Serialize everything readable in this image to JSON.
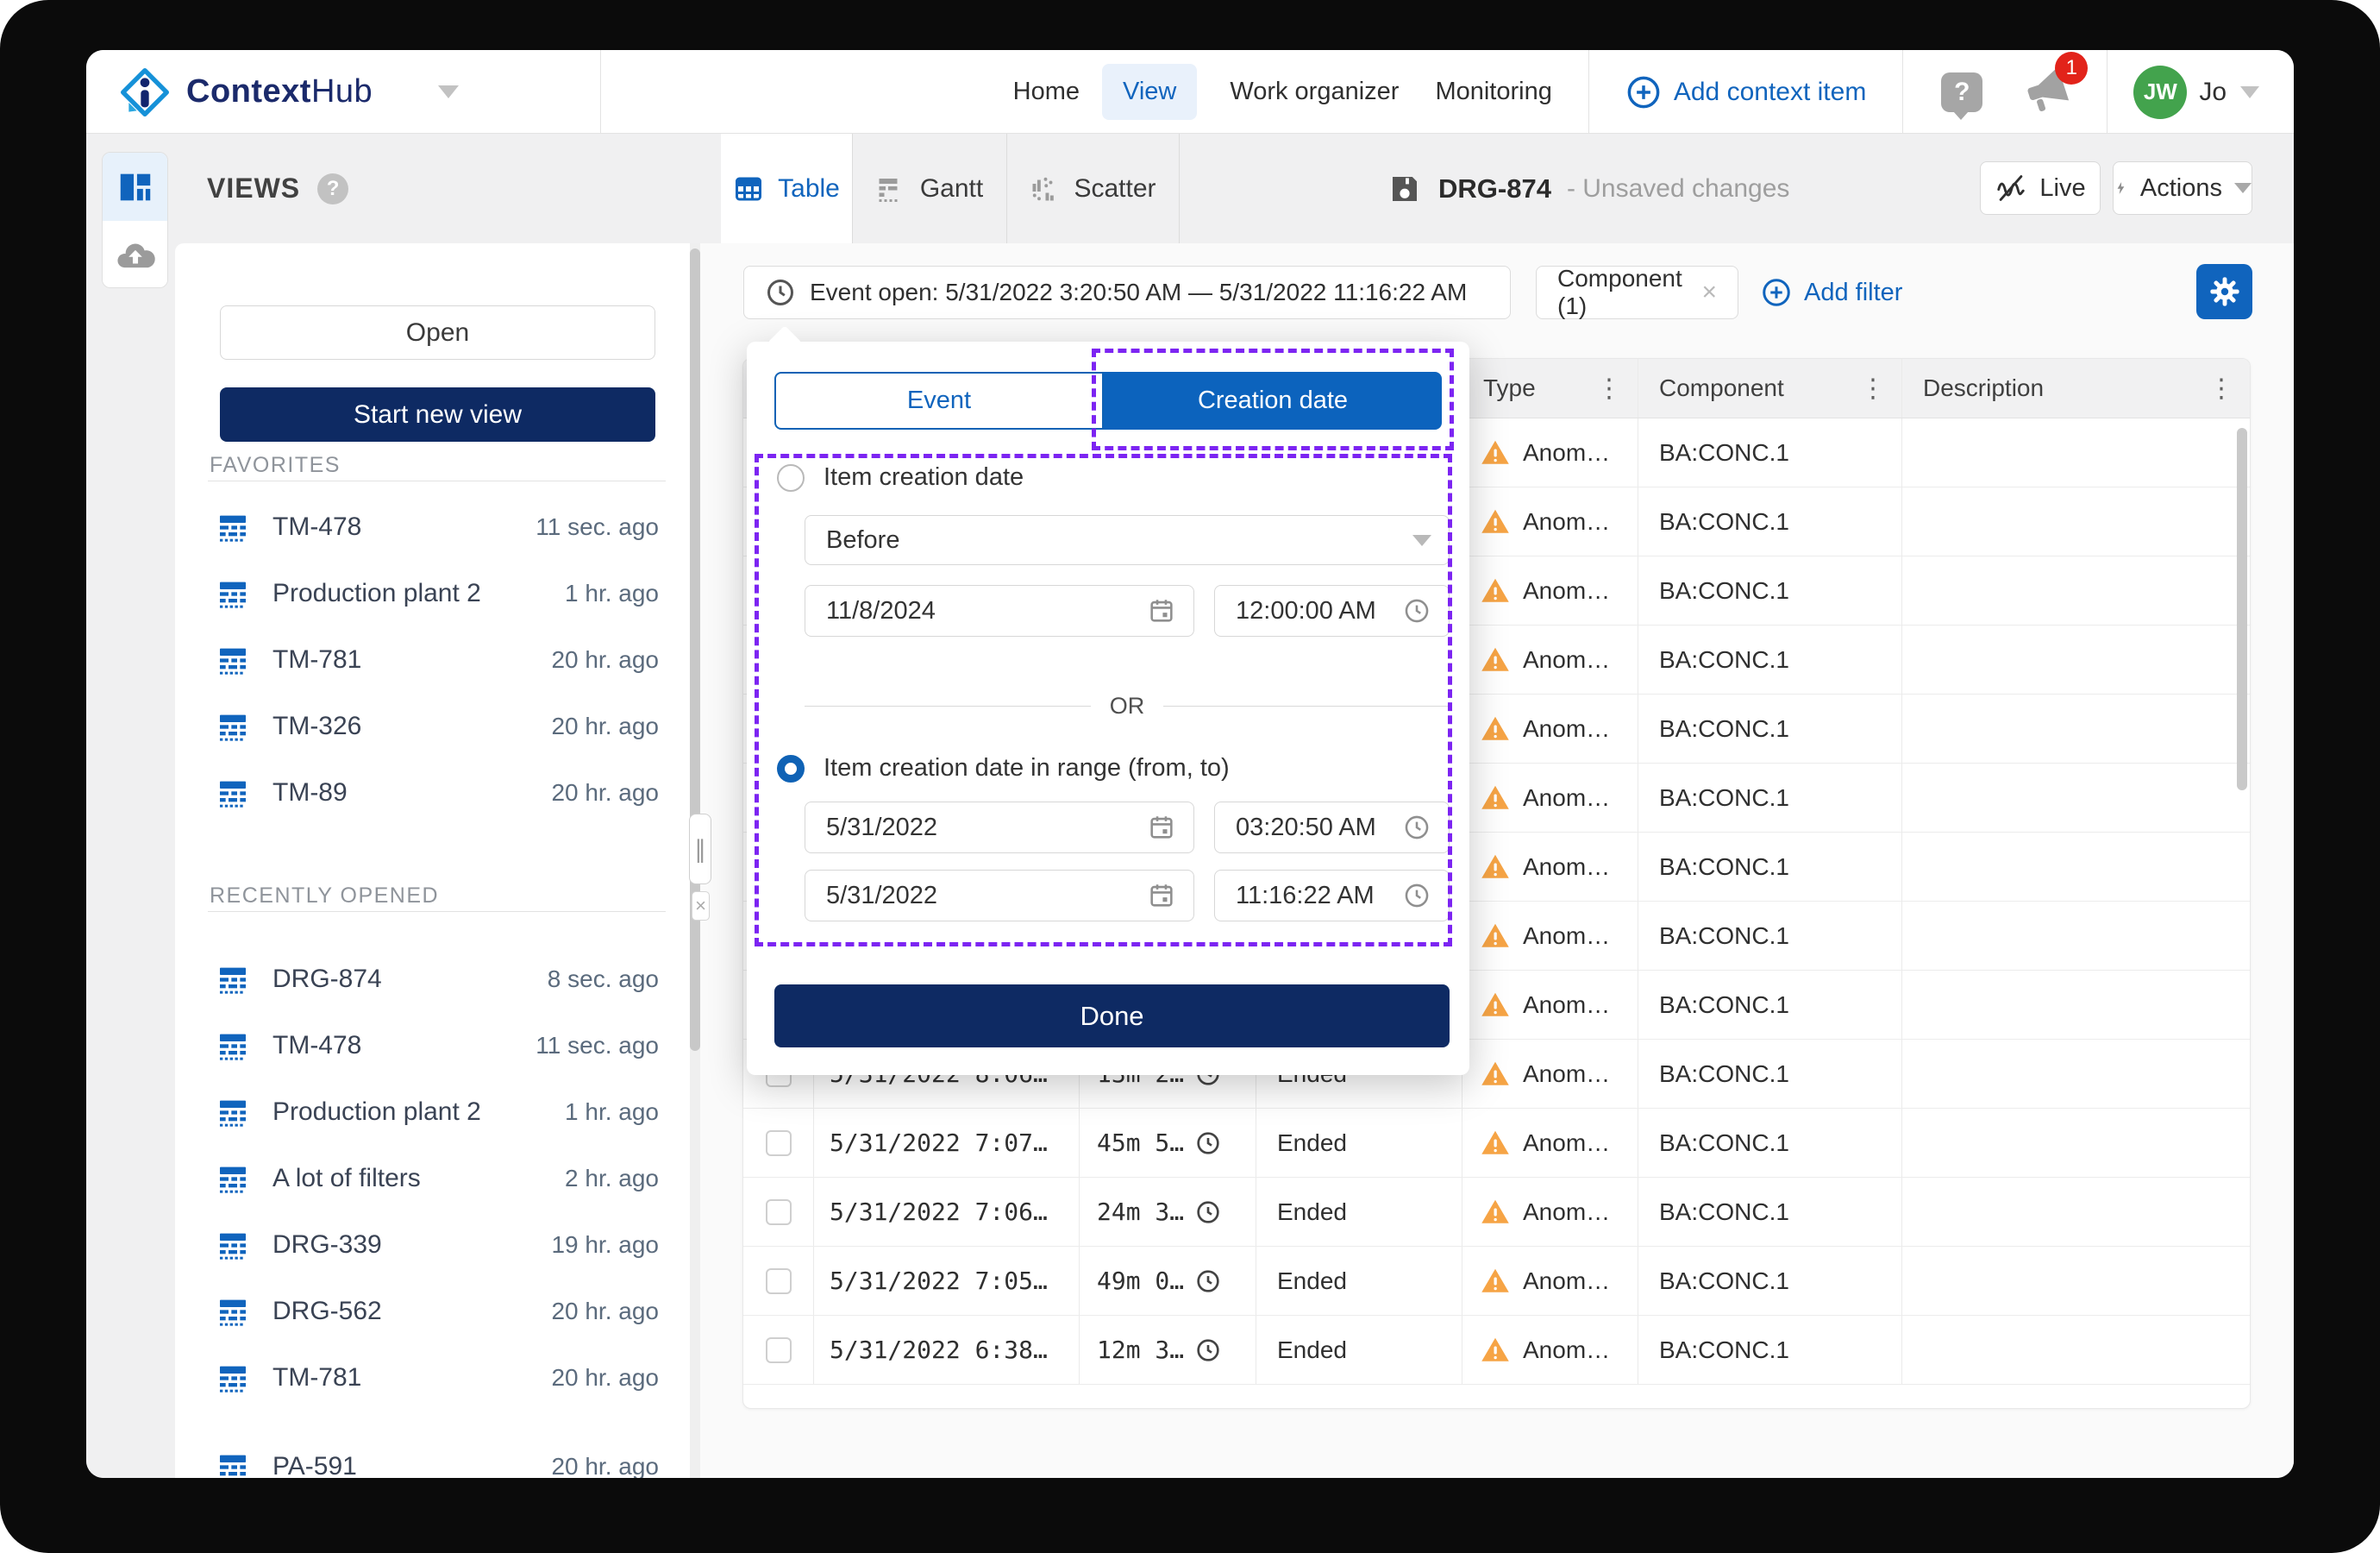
{
  "brand": {
    "name_bold": "Context",
    "name_light": "Hub"
  },
  "nav": {
    "items": [
      "Home",
      "View",
      "Work organizer",
      "Monitoring"
    ],
    "active_item": "View",
    "add_context_item": "Add context item",
    "help_glyph": "?",
    "notification_count": "1",
    "avatar_initials": "JW",
    "user_name": "Jo"
  },
  "toolbar": {
    "views_title": "VIEWS",
    "views_help_glyph": "?",
    "tabs": [
      "Table",
      "Gantt",
      "Scatter"
    ],
    "active_tab": "Table",
    "doc_title": "DRG-874",
    "doc_status": "- Unsaved changes",
    "live_label": "Live",
    "actions_label": "Actions"
  },
  "sidebar": {
    "open_button": "Open",
    "start_new_view_button": "Start new view",
    "favorites_title": "FAVORITES",
    "favorites": [
      {
        "name": "TM-478",
        "time": "11 sec. ago"
      },
      {
        "name": "Production plant 2",
        "time": "1 hr. ago"
      },
      {
        "name": "TM-781",
        "time": "20 hr. ago"
      },
      {
        "name": "TM-326",
        "time": "20 hr. ago"
      },
      {
        "name": "TM-89",
        "time": "20 hr. ago"
      }
    ],
    "recent_title": "RECENTLY OPENED",
    "recent": [
      {
        "name": "DRG-874",
        "time": "8 sec. ago"
      },
      {
        "name": "TM-478",
        "time": "11 sec. ago"
      },
      {
        "name": "Production plant 2",
        "time": "1 hr. ago"
      },
      {
        "name": "A lot of filters",
        "time": "2 hr. ago"
      },
      {
        "name": "DRG-339",
        "time": "19 hr. ago"
      },
      {
        "name": "DRG-562",
        "time": "20 hr. ago"
      },
      {
        "name": "TM-781",
        "time": "20 hr. ago"
      },
      {
        "name": "PA-591",
        "time": "20 hr. ago"
      }
    ]
  },
  "filters": {
    "event_open_chip": "Event open: 5/31/2022 3:20:50 AM — 5/31/2022 11:16:22 AM",
    "component_chip": "Component (1)",
    "add_filter": "Add filter"
  },
  "popover": {
    "tab_event": "Event",
    "tab_creation_date": "Creation date",
    "single_radio_label": "Item creation date",
    "operator_value": "Before",
    "single_date": "11/8/2024",
    "single_time": "12:00:00 AM",
    "or_label": "OR",
    "range_radio_label": "Item creation date in range (from, to)",
    "from_date": "5/31/2022",
    "from_time": "03:20:50 AM",
    "to_date": "5/31/2022",
    "to_time": "11:16:22 AM",
    "done_button": "Done"
  },
  "table": {
    "columns": {
      "type": "Type",
      "component": "Component",
      "description": "Description"
    },
    "rows": [
      {
        "date": "",
        "duration": "",
        "status": "",
        "type": "Anom…",
        "component": "BA:CONC.1",
        "description": ""
      },
      {
        "date": "",
        "duration": "",
        "status": "",
        "type": "Anom…",
        "component": "BA:CONC.1",
        "description": ""
      },
      {
        "date": "",
        "duration": "",
        "status": "",
        "type": "Anom…",
        "component": "BA:CONC.1",
        "description": ""
      },
      {
        "date": "",
        "duration": "",
        "status": "",
        "type": "Anom…",
        "component": "BA:CONC.1",
        "description": ""
      },
      {
        "date": "",
        "duration": "",
        "status": "",
        "type": "Anom…",
        "component": "BA:CONC.1",
        "description": ""
      },
      {
        "date": "",
        "duration": "",
        "status": "",
        "type": "Anom…",
        "component": "BA:CONC.1",
        "description": ""
      },
      {
        "date": "",
        "duration": "",
        "status": "",
        "type": "Anom…",
        "component": "BA:CONC.1",
        "description": ""
      },
      {
        "date": "",
        "duration": "",
        "status": "",
        "type": "Anom…",
        "component": "BA:CONC.1",
        "description": ""
      },
      {
        "date": "",
        "duration": "",
        "status": "",
        "type": "Anom…",
        "component": "BA:CONC.1",
        "description": ""
      },
      {
        "date": "5/31/2022 8:06…",
        "duration": "13m 2…",
        "status": "Ended",
        "type": "Anom…",
        "component": "BA:CONC.1",
        "description": ""
      },
      {
        "date": "5/31/2022 7:07…",
        "duration": "45m 5…",
        "status": "Ended",
        "type": "Anom…",
        "component": "BA:CONC.1",
        "description": ""
      },
      {
        "date": "5/31/2022 7:06…",
        "duration": "24m 3…",
        "status": "Ended",
        "type": "Anom…",
        "component": "BA:CONC.1",
        "description": ""
      },
      {
        "date": "5/31/2022 7:05…",
        "duration": "49m 0…",
        "status": "Ended",
        "type": "Anom…",
        "component": "BA:CONC.1",
        "description": ""
      },
      {
        "date": "5/31/2022 6:38…",
        "duration": "12m 3…",
        "status": "Ended",
        "type": "Anom…",
        "component": "BA:CONC.1",
        "description": ""
      }
    ]
  },
  "colors": {
    "accent_blue": "#1064bd",
    "navy": "#0e2a63",
    "annotation_purple": "#7c24f2",
    "warning_orange": "#f6a445",
    "badge_red": "#e2231a",
    "avatar_green": "#43a34d"
  }
}
